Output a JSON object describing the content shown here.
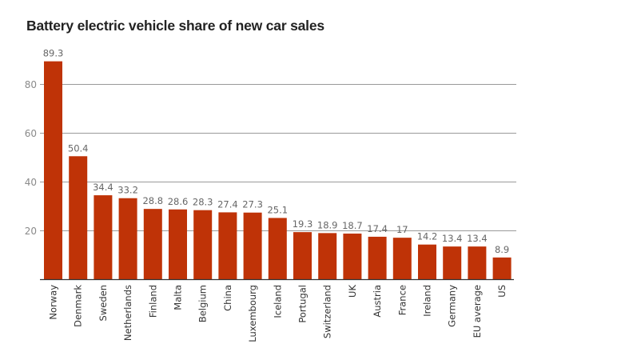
{
  "chart_data": {
    "type": "bar",
    "title": "Battery electric vehicle share of new car sales",
    "xlabel": "",
    "ylabel": "",
    "ylim": [
      0,
      90
    ],
    "yticks": [
      20,
      40,
      60,
      80
    ],
    "grid": true,
    "bar_color": "#bf3307",
    "categories": [
      "Norway",
      "Denmark",
      "Sweden",
      "Netherlands",
      "Finland",
      "Malta",
      "Belgium",
      "China",
      "Luxembourg",
      "Iceland",
      "Portugal",
      "Switzerland",
      "UK",
      "Austria",
      "France",
      "Ireland",
      "Germany",
      "EU average",
      "US"
    ],
    "values": [
      89.3,
      50.4,
      34.4,
      33.2,
      28.8,
      28.6,
      28.3,
      27.4,
      27.3,
      25.1,
      19.3,
      18.9,
      18.7,
      17.4,
      17,
      14.2,
      13.4,
      13.4,
      8.9
    ],
    "value_labels": [
      "89.3",
      "50.4",
      "34.4",
      "33.2",
      "28.8",
      "28.6",
      "28.3",
      "27.4",
      "27.3",
      "25.1",
      "19.3",
      "18.9",
      "18.7",
      "17.4",
      "17",
      "14.2",
      "13.4",
      "13.4",
      "8.9"
    ]
  }
}
